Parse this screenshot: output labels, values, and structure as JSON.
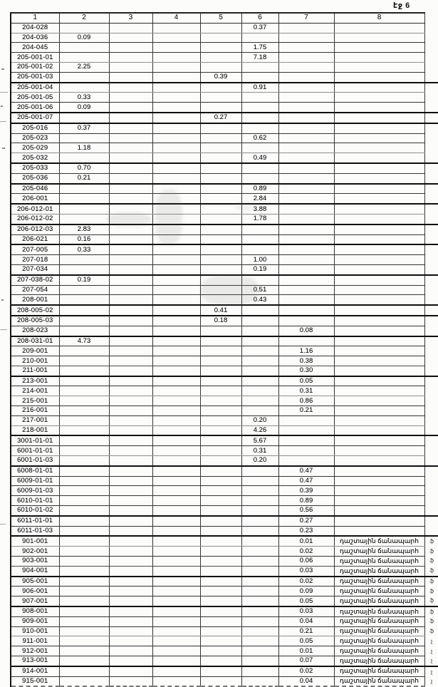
{
  "page_label": "էջ 6",
  "colors": {
    "ink": "#1a1a1a",
    "paper": "#fcfcfb",
    "border": "#343434"
  },
  "table": {
    "headers": [
      "1",
      "2",
      "3",
      "4",
      "5",
      "6",
      "7",
      "8"
    ],
    "road_label": "դաշտային ճանապարհ",
    "rows": [
      {
        "c1": "204-028",
        "c6": "0.37"
      },
      {
        "c1": "204-036",
        "c2": "0.09"
      },
      {
        "c1": "204-045",
        "c6": "1.75"
      },
      {
        "c1": "205-001-01",
        "c6": "7.18"
      },
      {
        "c1": "205-001-02",
        "c2": "2.25"
      },
      {
        "c1": "205-001-03",
        "c5": "0.39"
      },
      {
        "c1": "205-001-04",
        "c6": "0.91",
        "thick": true
      },
      {
        "c1": "205-001-05",
        "c2": "0.33"
      },
      {
        "c1": "205-001-06",
        "c2": "0.09"
      },
      {
        "c1": "205-001-07",
        "c5": "0.27",
        "thick": true
      },
      {
        "c1": "205-016",
        "c2": "0.37",
        "thick": true
      },
      {
        "c1": "205-023",
        "c6": "0.62"
      },
      {
        "c1": "205-029",
        "c2": "1.18"
      },
      {
        "c1": "205-032",
        "c6": "0.49"
      },
      {
        "c1": "205-033",
        "c2": "0.70",
        "thick": true
      },
      {
        "c1": "205-036",
        "c2": "0.21"
      },
      {
        "c1": "205-046",
        "c6": "0.89",
        "thick": true
      },
      {
        "c1": "206-001",
        "c6": "2.84"
      },
      {
        "c1": "206-012-01",
        "c6": "3.88",
        "thick": true
      },
      {
        "c1": "206-012-02",
        "c6": "1.78"
      },
      {
        "c1": "206-012-03",
        "c2": "2.83",
        "thick": true
      },
      {
        "c1": "206-021",
        "c2": "0.16"
      },
      {
        "c1": "207-005",
        "c2": "0.33",
        "thick": true
      },
      {
        "c1": "207-018",
        "c6": "1.00"
      },
      {
        "c1": "207-034",
        "c6": "0.19"
      },
      {
        "c1": "207-038-02",
        "c2": "0.19",
        "thick": true
      },
      {
        "c1": "207-054",
        "c6": "0.51"
      },
      {
        "c1": "208-001",
        "c6": "0.43"
      },
      {
        "c1": "208-005-02",
        "c5": "0.41",
        "thick": true
      },
      {
        "c1": "208-005-03",
        "c5": "0.18",
        "thick": true
      },
      {
        "c1": "208-023",
        "c7": "0.08"
      },
      {
        "c1": "208-031-01",
        "c2": "4.73",
        "thick": true
      },
      {
        "c1": "209-001",
        "c7": "1.16"
      },
      {
        "c1": "210-001",
        "c7": "0.38"
      },
      {
        "c1": "211-001",
        "c7": "0.30"
      },
      {
        "c1": "213-001",
        "c7": "0.05",
        "thick": true
      },
      {
        "c1": "214-001",
        "c7": "0.31"
      },
      {
        "c1": "215-001",
        "c7": "0.86"
      },
      {
        "c1": "216-001",
        "c7": "0.21"
      },
      {
        "c1": "217-001",
        "c6": "0.20"
      },
      {
        "c1": "218-001",
        "c6": "4.26"
      },
      {
        "c1": "3001-01-01",
        "c6": "5.67",
        "thick": true
      },
      {
        "c1": "6001-01-01",
        "c6": "0.31"
      },
      {
        "c1": "6001-01-03",
        "c6": "0.20"
      },
      {
        "c1": "6008-01-01",
        "c7": "0.47",
        "thick": true
      },
      {
        "c1": "6009-01-01",
        "c7": "0.47"
      },
      {
        "c1": "6009-01-03",
        "c7": "0.39"
      },
      {
        "c1": "6010-01-01",
        "c7": "0.89"
      },
      {
        "c1": "6010-01-02",
        "c7": "0.56"
      },
      {
        "c1": "6011-01-01",
        "c7": "0.27",
        "thick": true
      },
      {
        "c1": "6011-01-03",
        "c7": "0.23"
      },
      {
        "c1": "901-001",
        "c7": "0.01",
        "c8": "դաշտային ճանապարհ",
        "edge": "ֆ",
        "thick": true
      },
      {
        "c1": "902-001",
        "c7": "0.02",
        "c8": "դաշտային ճանապարհ",
        "edge": "ֆ"
      },
      {
        "c1": "903-001",
        "c7": "0.06",
        "c8": "դաշտային ճանապարհ",
        "edge": "ֆ"
      },
      {
        "c1": "904-001",
        "c7": "0.03",
        "c8": "դաշտային ճանապարհ",
        "edge": "ֆ"
      },
      {
        "c1": "905-001",
        "c7": "0.02",
        "c8": "դաշտային ճանապարհ",
        "edge": "ֆ",
        "thick": true
      },
      {
        "c1": "906-001",
        "c7": "0.09",
        "c8": "դաշտային ճանապարհ",
        "edge": "ֆ"
      },
      {
        "c1": "907-001",
        "c7": "0.05",
        "c8": "դաշտային ճանապարհ",
        "edge": "ֆ"
      },
      {
        "c1": "908-001",
        "c7": "0.03",
        "c8": "դաշտային ճանապարհ",
        "edge": "ֆ",
        "thick": true
      },
      {
        "c1": "909-001",
        "c7": "0.04",
        "c8": "դաշտային ճանապարհ",
        "edge": "ֆ"
      },
      {
        "c1": "910-001",
        "c7": "0.21",
        "c8": "դաշտային ճանապարհ",
        "edge": "ֆ"
      },
      {
        "c1": "911-001",
        "c7": "0.05",
        "c8": "դաշտային ճանապարհ",
        "edge": "չ"
      },
      {
        "c1": "912-001",
        "c7": "0.01",
        "c8": "դաշտային ճանապարհ",
        "edge": "չ"
      },
      {
        "c1": "913-001",
        "c7": "0.07",
        "c8": "դաշտային ճանապարհ",
        "edge": "չ"
      },
      {
        "c1": "914-001",
        "c7": "0.02",
        "c8": "դաշտային ճանապարհ",
        "edge": "չ",
        "thick": true
      },
      {
        "c1": "915-001",
        "c7": "0.04",
        "c8": "դաշտային ճանապարհ",
        "edge": "չ"
      }
    ]
  }
}
